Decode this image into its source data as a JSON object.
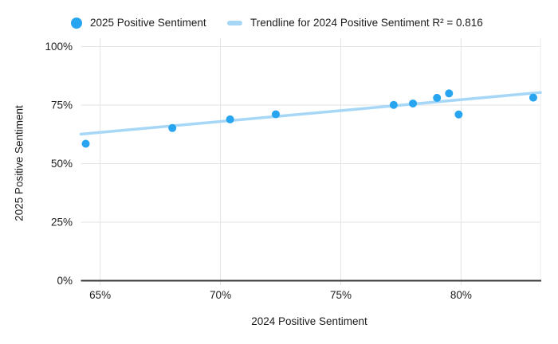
{
  "chart_data": {
    "type": "scatter",
    "title": "",
    "xlabel": "2024 Positive Sentiment",
    "ylabel": "2025 Positive Sentiment",
    "series": [
      {
        "name": "2025 Positive Sentiment",
        "color": "#28a5f0",
        "points": [
          {
            "x": 64.4,
            "y": 58.5
          },
          {
            "x": 68.0,
            "y": 65.2
          },
          {
            "x": 70.4,
            "y": 68.9
          },
          {
            "x": 72.3,
            "y": 71.1
          },
          {
            "x": 77.2,
            "y": 75.1
          },
          {
            "x": 78.0,
            "y": 75.7
          },
          {
            "x": 79.0,
            "y": 78.1
          },
          {
            "x": 79.5,
            "y": 80.0
          },
          {
            "x": 79.9,
            "y": 71.0
          },
          {
            "x": 83.0,
            "y": 78.2
          }
        ]
      }
    ],
    "trendline": {
      "label": "Trendline for 2024 Positive Sentiment R² = 0.816",
      "r_squared": 0.816,
      "color": "#a6d7f6",
      "x1": 64.2,
      "y1": 62.6,
      "x2": 83.3,
      "y2": 80.4
    },
    "x_ticks": [
      {
        "value": 65,
        "label": "65%"
      },
      {
        "value": 70,
        "label": "70%"
      },
      {
        "value": 75,
        "label": "75%"
      },
      {
        "value": 80,
        "label": "80%"
      }
    ],
    "y_ticks": [
      {
        "value": 0,
        "label": "0%"
      },
      {
        "value": 25,
        "label": "25%"
      },
      {
        "value": 50,
        "label": "50%"
      },
      {
        "value": 75,
        "label": "75%"
      },
      {
        "value": 100,
        "label": "100%"
      }
    ],
    "xlim": [
      64.2,
      83.3
    ],
    "ylim": [
      0,
      100
    ],
    "grid": true,
    "legend_position": "top",
    "colors": {
      "grid": "#e3e3e3",
      "axis": "#373737",
      "text": "#1c1c1c",
      "background": "#ffffff"
    }
  }
}
